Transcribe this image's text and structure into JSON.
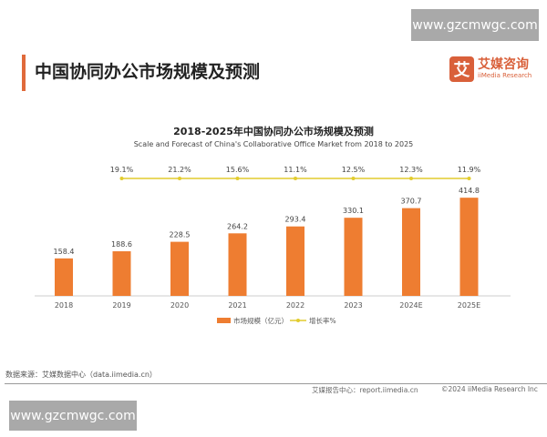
{
  "watermark": "www.gzcmwgc.com",
  "page_title": "中国协同办公市场规模及预测",
  "logo": {
    "icon": "艾",
    "cn": "艾媒咨询",
    "en": "iiMedia Research"
  },
  "source": "数据来源：艾媒数据中心（data.iimedia.cn）",
  "footer": {
    "report": "艾媒报告中心：report.iimedia.cn",
    "copyright": "©2024  iiMedia Research  Inc"
  },
  "colors": {
    "bar": "#ee7d31",
    "line": "#e2cc2e",
    "accent": "#e06a3b"
  },
  "chart_data": {
    "type": "bar",
    "title": "2018-2025年中国协同办公市场规模及预测",
    "subtitle": "Scale and Forecast of China's Collaborative Office Market from 2018 to 2025",
    "categories": [
      "2018",
      "2019",
      "2020",
      "2021",
      "2022",
      "2023",
      "2024E",
      "2025E"
    ],
    "series": [
      {
        "name": "市场规模（亿元）",
        "type": "bar",
        "values": [
          158.4,
          188.6,
          228.5,
          264.2,
          293.4,
          330.1,
          370.7,
          414.8
        ],
        "labels": [
          "158.4",
          "188.6",
          "228.5",
          "264.2",
          "293.4",
          "330.1",
          "370.7",
          "414.8"
        ]
      },
      {
        "name": "增长率%",
        "type": "line",
        "values": [
          null,
          19.1,
          21.2,
          15.6,
          11.1,
          12.5,
          12.3,
          11.9
        ],
        "labels": [
          "",
          "19.1%",
          "21.2%",
          "15.6%",
          "11.1%",
          "12.5%",
          "12.3%",
          "11.9%"
        ]
      }
    ],
    "grid": false,
    "legend": "bottom"
  }
}
